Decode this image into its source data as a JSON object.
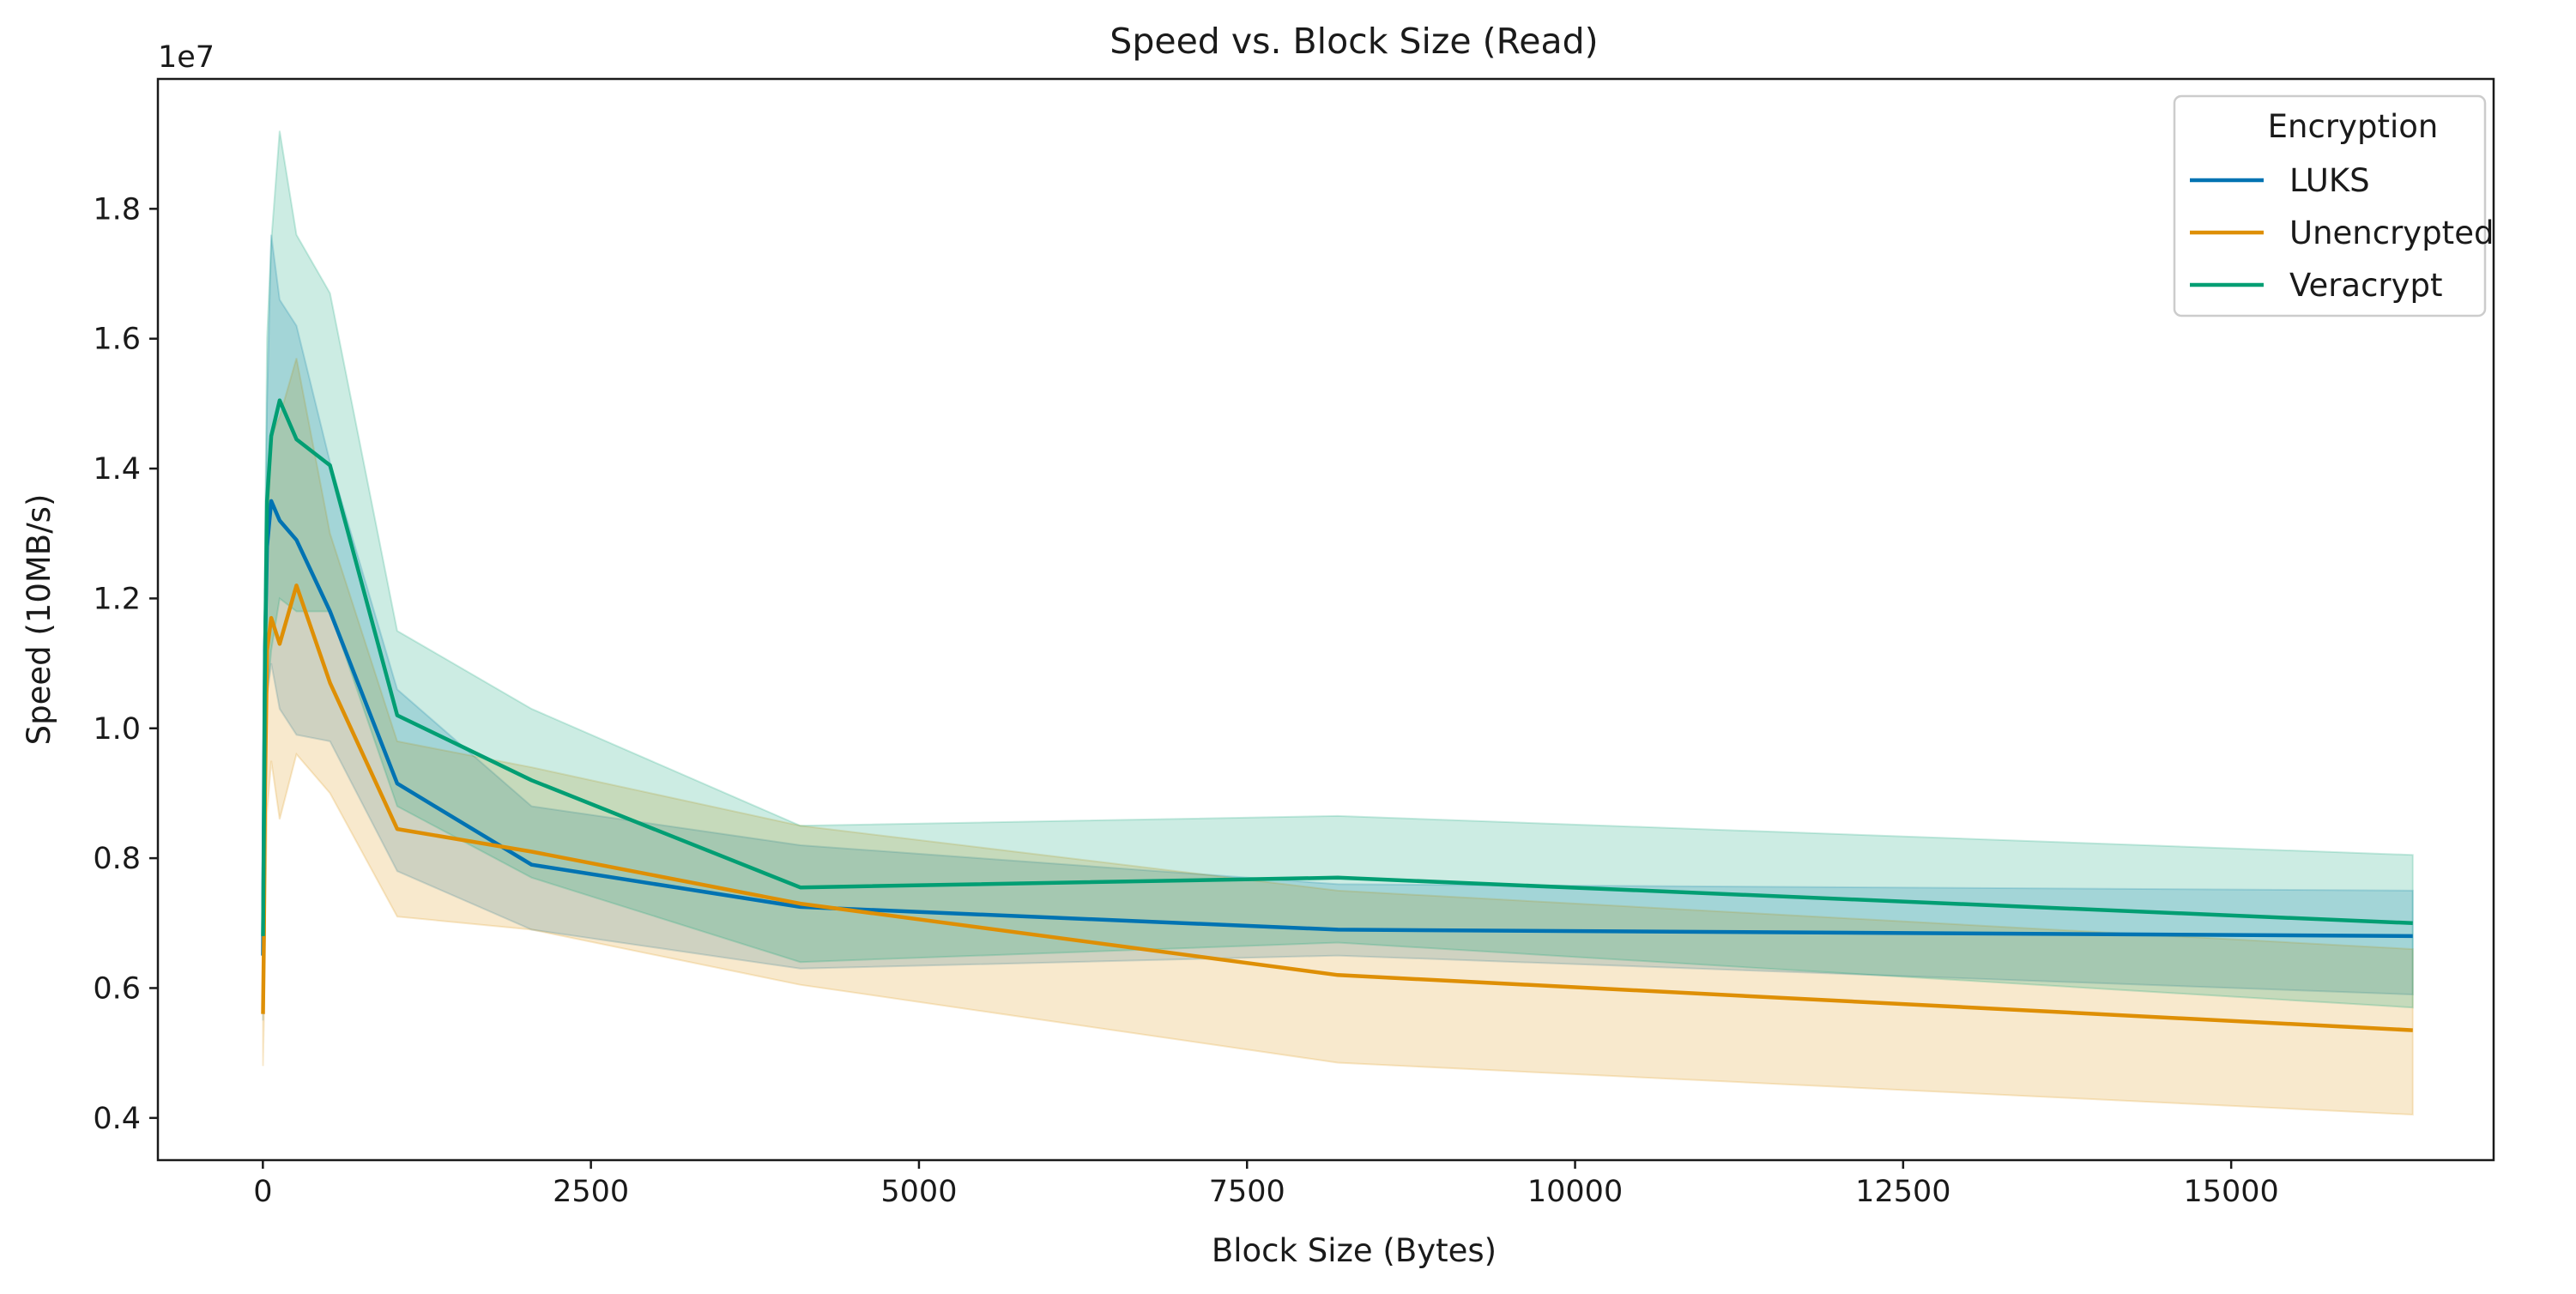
{
  "chart_data": {
    "type": "line",
    "title": "Speed vs. Block Size (Read)",
    "xlabel": "Block Size (Bytes)",
    "ylabel": "Speed (10MB/s)",
    "y_scale_label": "1e7",
    "xlim": [
      -800,
      17000
    ],
    "ylim": [
      3350000,
      20000000
    ],
    "x_ticks": [
      0,
      2500,
      5000,
      7500,
      10000,
      12500,
      15000
    ],
    "x_tick_labels": [
      "0",
      "2500",
      "5000",
      "7500",
      "10000",
      "12500",
      "15000"
    ],
    "y_ticks": [
      4000000,
      6000000,
      8000000,
      10000000,
      12000000,
      14000000,
      16000000,
      18000000
    ],
    "y_tick_labels": [
      "0.4",
      "0.6",
      "0.8",
      "1.0",
      "1.2",
      "1.4",
      "1.6",
      "1.8"
    ],
    "grid": false,
    "legend": {
      "title": "Encryption",
      "placement": "top-right"
    },
    "x": [
      1,
      8,
      16,
      32,
      64,
      128,
      256,
      512,
      1024,
      2048,
      4096,
      8192,
      16384
    ],
    "series": [
      {
        "name": "LUKS",
        "color": "#0173b2",
        "values": [
          6500000,
          9000000,
          11200000,
          12800000,
          13500000,
          13200000,
          12900000,
          11800000,
          9150000,
          7900000,
          7250000,
          6900000,
          6800000
        ],
        "ci_low": [
          5500000,
          8000000,
          9500000,
          10500000,
          11000000,
          10300000,
          9900000,
          9800000,
          7800000,
          6900000,
          6300000,
          6500000,
          5900000
        ],
        "ci_high": [
          7500000,
          10000000,
          12500000,
          15000000,
          17600000,
          16600000,
          16200000,
          14100000,
          10600000,
          8800000,
          8200000,
          7600000,
          7500000
        ]
      },
      {
        "name": "Unencrypted",
        "color": "#de8f05",
        "values": [
          5600000,
          6800000,
          9000000,
          11200000,
          11700000,
          11300000,
          12200000,
          10700000,
          8450000,
          8100000,
          7300000,
          6200000,
          5350000
        ],
        "ci_low": [
          4800000,
          5500000,
          7000000,
          8700000,
          9500000,
          8600000,
          9600000,
          9000000,
          7100000,
          6900000,
          6050000,
          4850000,
          4050000
        ],
        "ci_high": [
          6400000,
          8000000,
          10500000,
          12800000,
          14500000,
          14800000,
          15700000,
          13000000,
          9800000,
          9400000,
          8500000,
          7500000,
          6600000
        ]
      },
      {
        "name": "Veracrypt",
        "color": "#029e73",
        "values": [
          6800000,
          8500000,
          11000000,
          13500000,
          14500000,
          15050000,
          14450000,
          14050000,
          10200000,
          9200000,
          7550000,
          7700000,
          7000000
        ],
        "ci_low": [
          5800000,
          7500000,
          9000000,
          10500000,
          11200000,
          12000000,
          11800000,
          11800000,
          8800000,
          7700000,
          6400000,
          6700000,
          5700000
        ],
        "ci_high": [
          7800000,
          9600000,
          12800000,
          16000000,
          17500000,
          19200000,
          17600000,
          16700000,
          11500000,
          10300000,
          8500000,
          8650000,
          8050000
        ]
      }
    ]
  }
}
